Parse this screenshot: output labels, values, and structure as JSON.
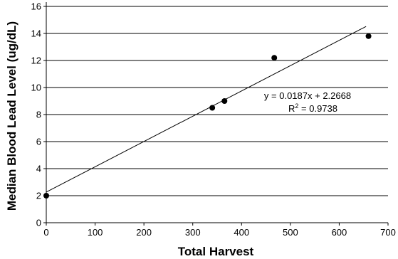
{
  "chart_data": {
    "type": "scatter",
    "title": "",
    "xlabel": "Total Harvest",
    "ylabel": "Median Blood Lead Level (ug/dL)",
    "xlim": [
      0,
      700
    ],
    "ylim": [
      0,
      16
    ],
    "xticks": [
      0,
      100,
      200,
      300,
      400,
      500,
      600,
      700
    ],
    "yticks": [
      0,
      2,
      4,
      6,
      8,
      10,
      12,
      14,
      16
    ],
    "grid": "horizontal",
    "points": [
      {
        "x": 0,
        "y": 2.0
      },
      {
        "x": 340,
        "y": 8.5
      },
      {
        "x": 365,
        "y": 9.0
      },
      {
        "x": 467,
        "y": 12.2
      },
      {
        "x": 660,
        "y": 13.8
      }
    ],
    "trendline": {
      "slope": 0.0187,
      "intercept": 2.2668,
      "x_range": [
        0,
        655
      ]
    },
    "annotation": {
      "equation": "y = 0.0187x + 2.2668",
      "r2_prefix": "R",
      "r2_exp": "2",
      "r2_suffix": " = 0.9738"
    }
  }
}
